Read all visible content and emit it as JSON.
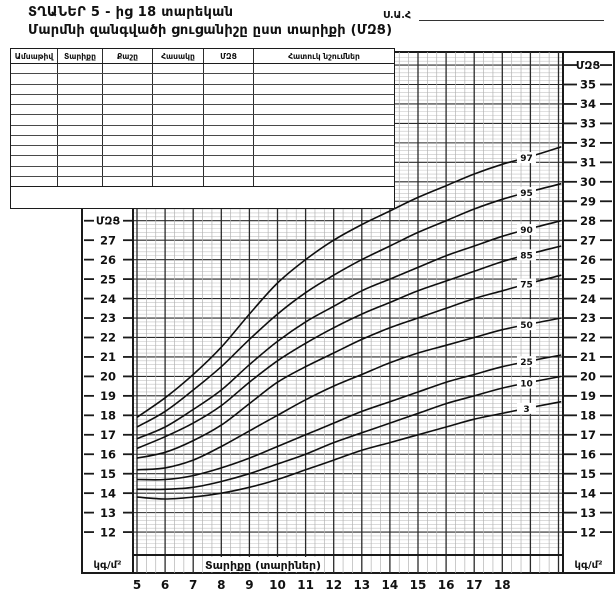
{
  "header": {
    "title": "ՏՂԱՆԵՐ  5 - ից 18 տարեկան",
    "subtitle": "Մարմնի զանգվածի ցուցանիշը ըստ տարիքի (ՄԶՑ)",
    "name_label": "Ս.Ա.Հ"
  },
  "table": {
    "headers": [
      "Ամսաթիվ",
      "Տարիքը",
      "Քաշը",
      "Հասակը",
      "ՄԶՑ",
      "Հատուկ նշումներ"
    ],
    "body_row_count": 12
  },
  "chart_data": {
    "type": "line",
    "title": "Մարմնի զանգվածի ցուցանիշը ըստ տարիքի (ՄԶՑ)",
    "xlabel": "Տարիքը (տարիներ)",
    "ylabel": "ՄԶՑ",
    "y_unit": "կգ/մ²",
    "xlim": [
      5,
      20.2
    ],
    "ylim": [
      11,
      36.6
    ],
    "x_ticks": [
      5,
      6,
      7,
      8,
      9,
      10,
      11,
      12,
      13,
      14,
      15,
      16,
      17,
      18
    ],
    "y_ticks_right": [
      35,
      34,
      33,
      32,
      31,
      30,
      29,
      28,
      27,
      26,
      25,
      24,
      23,
      22,
      21,
      20,
      19,
      18,
      17,
      16,
      15,
      14,
      13,
      12
    ],
    "y_ticks_left": [
      27,
      26,
      25,
      24,
      23,
      22,
      21,
      20,
      19,
      18,
      17,
      16,
      15,
      14,
      13,
      12
    ],
    "grid": {
      "x_minor_per_year": 3,
      "y_minor_step": 0.2,
      "y_major_step": 1
    },
    "legend_position": "on-curve-right",
    "curve_label_age": 18.86,
    "ages": [
      5,
      6,
      7,
      8,
      9,
      10,
      11,
      12,
      13,
      14,
      15,
      16,
      17,
      18,
      19,
      20.1
    ],
    "series": [
      {
        "name": "97",
        "values": [
          17.9,
          18.9,
          20.1,
          21.5,
          23.2,
          24.8,
          26.0,
          27.0,
          27.8,
          28.5,
          29.2,
          29.8,
          30.4,
          30.9,
          31.3,
          31.8
        ]
      },
      {
        "name": "95",
        "values": [
          17.4,
          18.2,
          19.3,
          20.5,
          21.9,
          23.2,
          24.3,
          25.2,
          26.0,
          26.7,
          27.4,
          28.0,
          28.6,
          29.1,
          29.5,
          29.9
        ]
      },
      {
        "name": "90",
        "values": [
          16.8,
          17.4,
          18.3,
          19.3,
          20.6,
          21.8,
          22.8,
          23.6,
          24.4,
          25.0,
          25.6,
          26.2,
          26.7,
          27.2,
          27.6,
          28.0
        ]
      },
      {
        "name": "85",
        "values": [
          16.3,
          16.9,
          17.6,
          18.5,
          19.7,
          20.8,
          21.7,
          22.5,
          23.2,
          23.8,
          24.4,
          24.9,
          25.4,
          25.9,
          26.3,
          26.7
        ]
      },
      {
        "name": "75",
        "values": [
          15.8,
          16.1,
          16.7,
          17.5,
          18.6,
          19.7,
          20.5,
          21.2,
          21.9,
          22.5,
          23.0,
          23.5,
          24.0,
          24.4,
          24.8,
          25.2
        ]
      },
      {
        "name": "50",
        "values": [
          15.2,
          15.3,
          15.7,
          16.4,
          17.2,
          18.0,
          18.8,
          19.5,
          20.1,
          20.7,
          21.2,
          21.6,
          22.0,
          22.4,
          22.7,
          23.0
        ]
      },
      {
        "name": "25",
        "values": [
          14.7,
          14.7,
          14.9,
          15.3,
          15.8,
          16.4,
          17.0,
          17.6,
          18.2,
          18.7,
          19.2,
          19.7,
          20.1,
          20.5,
          20.8,
          21.1
        ]
      },
      {
        "name": "10",
        "values": [
          14.2,
          14.2,
          14.3,
          14.6,
          15.0,
          15.5,
          16.0,
          16.6,
          17.1,
          17.6,
          18.1,
          18.6,
          19.0,
          19.4,
          19.7,
          20.0
        ]
      },
      {
        "name": "3",
        "values": [
          13.8,
          13.7,
          13.8,
          14.0,
          14.3,
          14.7,
          15.2,
          15.7,
          16.2,
          16.6,
          17.0,
          17.4,
          17.8,
          18.1,
          18.4,
          18.7
        ]
      }
    ],
    "colors": {
      "curve": "#101010",
      "grid_major": "#2b2b2b",
      "grid_half": "#8f8f8f",
      "grid_minor": "#c3c3c3",
      "border": "#1a1a1a",
      "ink": "#111111"
    }
  }
}
